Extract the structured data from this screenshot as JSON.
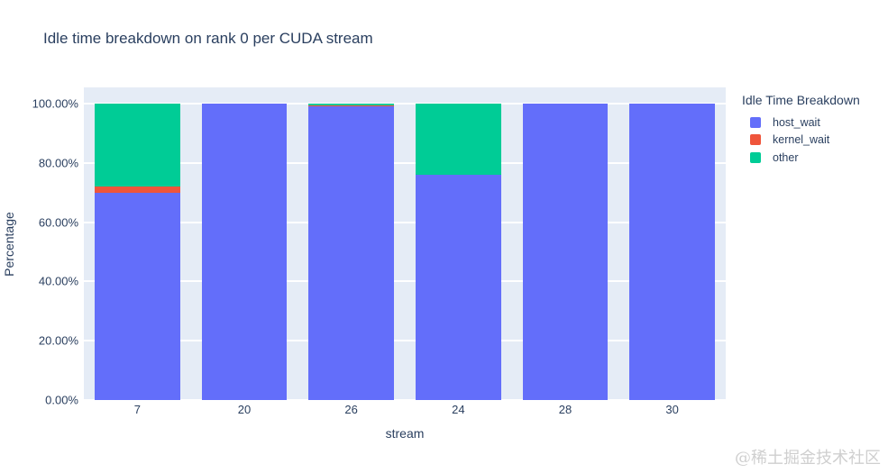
{
  "page": {
    "watermark": "@稀土掘金技术社区"
  },
  "chart_data": {
    "type": "bar",
    "stacked": true,
    "title": "Idle time breakdown on rank 0 per CUDA stream",
    "xlabel": "stream",
    "ylabel": "Percentage",
    "categories": [
      "7",
      "20",
      "26",
      "24",
      "28",
      "30"
    ],
    "series": [
      {
        "name": "host_wait",
        "color": "#636EFA",
        "values": [
          70.0,
          100.0,
          99.3,
          76.0,
          100.0,
          100.0
        ]
      },
      {
        "name": "kernel_wait",
        "color": "#EF553B",
        "values": [
          2.0,
          0.0,
          0.2,
          0.0,
          0.0,
          0.0
        ]
      },
      {
        "name": "other",
        "color": "#00CC96",
        "values": [
          28.0,
          0.0,
          0.5,
          24.0,
          0.0,
          0.0
        ]
      }
    ],
    "yticks": [
      {
        "value": 0,
        "label": "0.00%"
      },
      {
        "value": 20,
        "label": "20.00%"
      },
      {
        "value": 40,
        "label": "40.00%"
      },
      {
        "value": 60,
        "label": "60.00%"
      },
      {
        "value": 80,
        "label": "80.00%"
      },
      {
        "value": 100,
        "label": "100.00%"
      }
    ],
    "ylim": [
      0,
      105.5
    ],
    "grid": true,
    "legend_title": "Idle Time Breakdown",
    "legend_position": "right",
    "colors": {
      "plot_bg": "#E5ECF6",
      "grid": "#FFFFFF",
      "text": "#2A3F5F",
      "paper": "#FFFFFF"
    }
  }
}
